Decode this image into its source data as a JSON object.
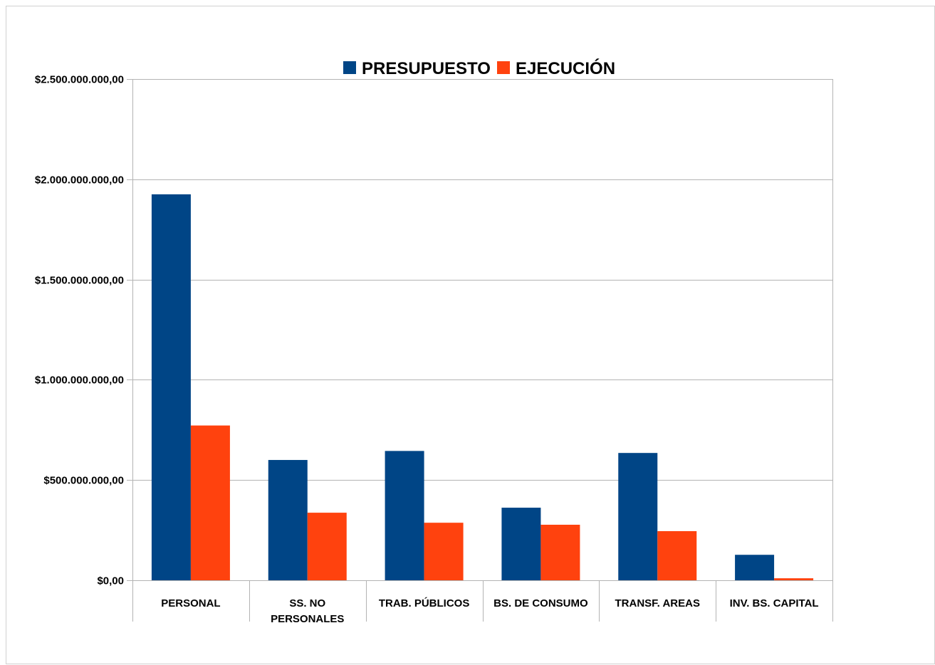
{
  "chart_data": {
    "type": "bar",
    "title": "",
    "xlabel": "",
    "ylabel": "",
    "categories": [
      [
        "PERSONAL"
      ],
      [
        "SS. NO",
        "PERSONALES"
      ],
      [
        "TRAB. PÚBLICOS"
      ],
      [
        "BS. DE CONSUMO"
      ],
      [
        "TRANSF. AREAS"
      ],
      [
        "INV. BS. CAPITAL"
      ]
    ],
    "series": [
      {
        "name": "PRESUPUESTO",
        "color": "#004586",
        "values": [
          1925000000,
          600000000,
          645000000,
          362000000,
          635000000,
          127000000
        ]
      },
      {
        "name": "EJECUCIÓN",
        "color": "#ff420e",
        "values": [
          772000000,
          337000000,
          287000000,
          277000000,
          245000000,
          10000000
        ]
      }
    ],
    "ylim": [
      0,
      2500000000
    ],
    "yticks": [
      0,
      500000000,
      1000000000,
      1500000000,
      2000000000,
      2500000000
    ],
    "ytick_labels": [
      "$0,00",
      "$500.000.000,00",
      "$1.000.000.000,00",
      "$1.500.000.000,00",
      "$2.000.000.000,00",
      "$2.500.000.000,00"
    ],
    "grid": true,
    "legend_position": "top"
  }
}
